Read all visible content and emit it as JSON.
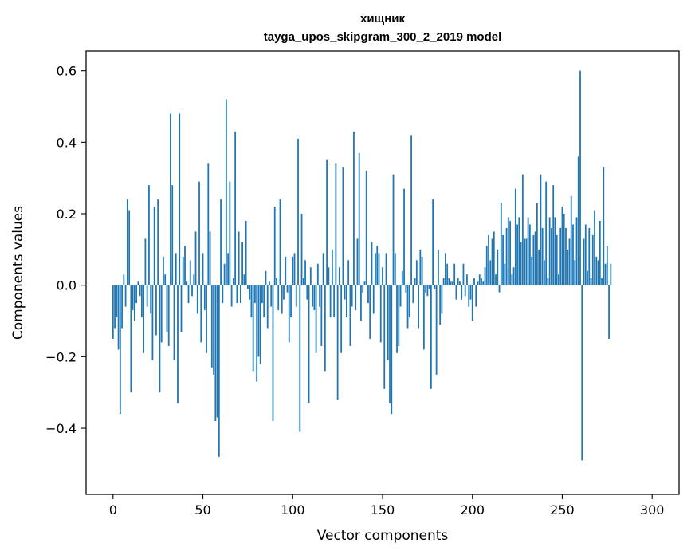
{
  "chart_data": {
    "type": "bar",
    "title": "хищник",
    "subtitle": "tayga_upos_skipgram_300_2_2019 model",
    "xlabel": "Vector components",
    "ylabel": "Components values",
    "xlim": [
      -15,
      315
    ],
    "ylim": [
      -0.585,
      0.655
    ],
    "xticks": [
      0,
      50,
      100,
      150,
      200,
      250,
      300
    ],
    "yticks": [
      -0.4,
      -0.2,
      0.0,
      0.2,
      0.4,
      0.6
    ],
    "ytick_labels": [
      "−0.4",
      "−0.2",
      "0.0",
      "0.2",
      "0.4",
      "0.6"
    ],
    "grid": false,
    "bar_color": "#1f77b4",
    "values": [
      -0.15,
      -0.12,
      -0.09,
      -0.18,
      -0.36,
      -0.12,
      0.03,
      -0.06,
      0.24,
      0.21,
      -0.3,
      -0.07,
      -0.1,
      -0.05,
      0.01,
      -0.03,
      -0.09,
      -0.19,
      0.13,
      -0.06,
      0.28,
      -0.08,
      -0.21,
      0.22,
      -0.14,
      0.24,
      -0.3,
      -0.16,
      0.08,
      0.03,
      -0.13,
      -0.17,
      0.48,
      0.28,
      -0.21,
      0.09,
      -0.33,
      0.48,
      -0.13,
      0.08,
      0.11,
      0.01,
      -0.05,
      0.07,
      -0.03,
      0.03,
      0.15,
      -0.08,
      0.29,
      -0.16,
      0.09,
      -0.07,
      -0.19,
      0.34,
      0.15,
      -0.23,
      -0.25,
      -0.38,
      -0.37,
      -0.48,
      0.24,
      -0.05,
      0.06,
      0.52,
      0.09,
      0.29,
      -0.06,
      0.02,
      0.43,
      -0.05,
      0.15,
      -0.05,
      0.12,
      0.03,
      0.18,
      -0.01,
      -0.04,
      -0.09,
      -0.24,
      -0.05,
      -0.27,
      -0.2,
      -0.22,
      -0.05,
      -0.09,
      0.04,
      -0.12,
      0.01,
      -0.06,
      -0.38,
      0.22,
      0.02,
      -0.07,
      0.24,
      -0.08,
      -0.04,
      0.08,
      -0.02,
      -0.16,
      -0.09,
      0.08,
      0.09,
      -0.06,
      0.41,
      -0.41,
      0.2,
      0.02,
      0.07,
      -0.04,
      -0.33,
      0.05,
      -0.06,
      -0.07,
      -0.19,
      0.06,
      -0.06,
      -0.17,
      0.09,
      -0.24,
      0.35,
      0.05,
      -0.09,
      0.1,
      -0.09,
      0.34,
      -0.32,
      0.05,
      -0.19,
      0.33,
      -0.04,
      -0.09,
      0.07,
      -0.17,
      -0.06,
      0.43,
      -0.07,
      0.13,
      0.37,
      -0.1,
      -0.02,
      0.01,
      0.32,
      -0.05,
      -0.15,
      0.12,
      -0.08,
      0.09,
      0.11,
      0.09,
      -0.16,
      0.05,
      -0.29,
      0.09,
      -0.21,
      -0.33,
      -0.36,
      0.31,
      0.09,
      -0.19,
      -0.17,
      -0.06,
      0.04,
      0.27,
      -0.02,
      -0.12,
      -0.09,
      0.42,
      -0.05,
      0.02,
      0.07,
      -0.12,
      0.1,
      0.08,
      -0.18,
      -0.02,
      -0.03,
      -0.01,
      -0.29,
      0.24,
      -0.01,
      -0.25,
      0.1,
      -0.11,
      -0.08,
      0.02,
      0.09,
      0.06,
      0.02,
      0.01,
      0.01,
      0.06,
      -0.04,
      0.02,
      0.01,
      -0.04,
      0.06,
      -0.03,
      0.03,
      -0.06,
      -0.04,
      -0.1,
      0.02,
      -0.06,
      0.01,
      0.03,
      0.02,
      0.01,
      0.05,
      0.11,
      0.14,
      0.07,
      0.13,
      0.15,
      0.03,
      0.1,
      -0.02,
      0.23,
      0.14,
      0.06,
      0.16,
      0.19,
      0.18,
      0.03,
      0.05,
      0.27,
      0.17,
      0.19,
      0.12,
      0.31,
      0.13,
      0.13,
      0.19,
      0.17,
      0.08,
      0.14,
      0.15,
      0.23,
      0.1,
      0.31,
      0.16,
      0.07,
      0.29,
      0.02,
      0.19,
      0.16,
      0.28,
      0.19,
      0.14,
      0.03,
      0.16,
      0.22,
      0.2,
      0.16,
      0.1,
      0.13,
      0.25,
      0.17,
      0.07,
      0.19,
      0.36,
      0.6,
      -0.49,
      0.13,
      0.17,
      0.04,
      0.16,
      0.02,
      0.14,
      0.21,
      0.08,
      0.07,
      0.18,
      0.02,
      0.33,
      0.06,
      0.11,
      -0.15,
      0.06
    ]
  }
}
